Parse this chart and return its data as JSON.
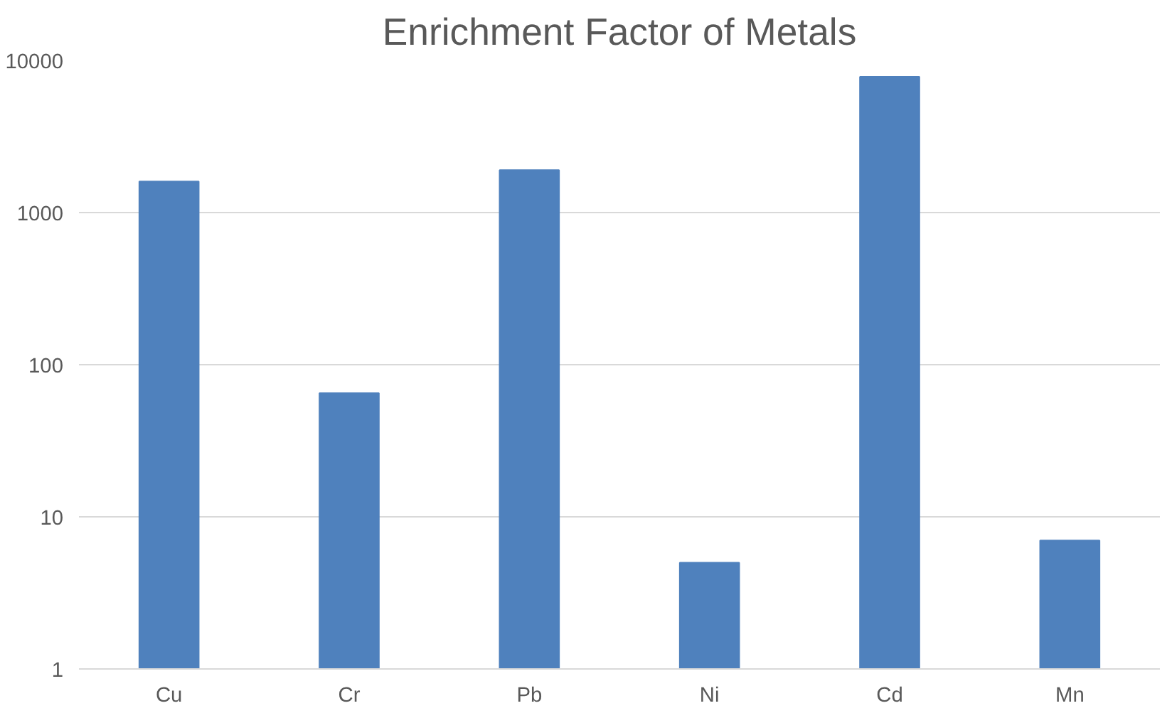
{
  "chart_data": {
    "type": "bar",
    "title": "Enrichment Factor of Metals",
    "categories": [
      "Cu",
      "Cr",
      "Pb",
      "Ni",
      "Cd",
      "Mn"
    ],
    "values": [
      1600,
      65,
      1900,
      5,
      7800,
      7
    ],
    "color": "#4f81bd",
    "log": true,
    "ylim": [
      1,
      10000
    ],
    "yticks": [
      1,
      10,
      100,
      1000,
      10000
    ],
    "grid": "y"
  }
}
